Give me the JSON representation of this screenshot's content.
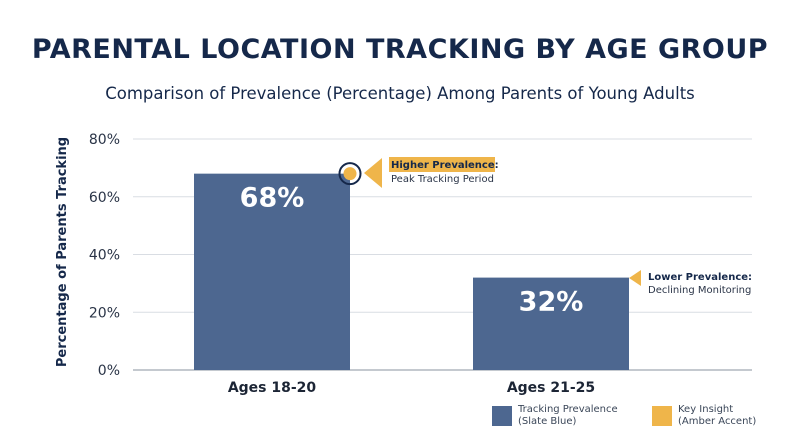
{
  "title": "PARENTAL LOCATION TRACKING BY AGE GROUP",
  "subtitle": "Comparison of Prevalence (Percentage) Among Parents of Young Adults",
  "colors": {
    "bar": "#4d6790",
    "accent": "#efb54a",
    "grid": "#d9dde3",
    "text": "#15284a"
  },
  "chart_data": {
    "type": "bar",
    "categories": [
      "Ages 18-20",
      "Ages 21-25"
    ],
    "values": [
      68,
      32
    ],
    "data_labels": [
      "68%",
      "32%"
    ],
    "ylabel": "Percentage of Parents Tracking",
    "ylim": [
      0,
      80
    ],
    "yticks": [
      "0%",
      "20%",
      "40%",
      "60%",
      "80%"
    ],
    "grid": true,
    "annotations": [
      {
        "bold": "Higher Prevalence:",
        "text": "Peak Tracking Period"
      },
      {
        "bold": "Lower Prevalence:",
        "text": "Declining Monitoring"
      }
    ],
    "legend": [
      {
        "label": "Tracking Prevalence (Slate Blue)",
        "color": "#4d6790"
      },
      {
        "label": "Key Insight (Amber Accent)",
        "color": "#efb54a"
      }
    ],
    "legend_position": "bottom-right"
  }
}
